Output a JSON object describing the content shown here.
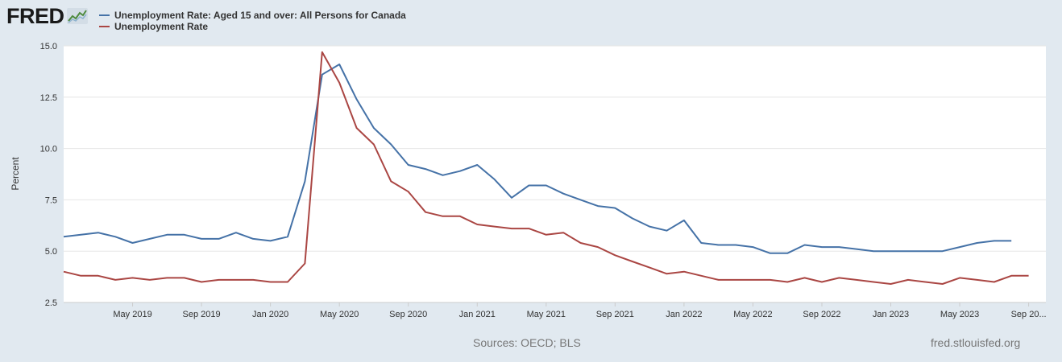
{
  "branding": {
    "logo_text": "FRED"
  },
  "footer": {
    "sources": "Sources: OECD; BLS",
    "site": "fred.stlouisfed.org"
  },
  "chart_data": {
    "type": "line",
    "ylabel": "Percent",
    "xlabel": "",
    "ylim": [
      2.5,
      15.0
    ],
    "y_ticks": [
      "15.0",
      "12.5",
      "10.0",
      "7.5",
      "5.0",
      "2.5"
    ],
    "y_tick_values": [
      15.0,
      12.5,
      10.0,
      7.5,
      5.0,
      2.5
    ],
    "x_ticks": [
      {
        "month_index": 4,
        "label": "May 2019"
      },
      {
        "month_index": 8,
        "label": "Sep 2019"
      },
      {
        "month_index": 12,
        "label": "Jan 2020"
      },
      {
        "month_index": 16,
        "label": "May 2020"
      },
      {
        "month_index": 20,
        "label": "Sep 2020"
      },
      {
        "month_index": 24,
        "label": "Jan 2021"
      },
      {
        "month_index": 28,
        "label": "May 2021"
      },
      {
        "month_index": 32,
        "label": "Sep 2021"
      },
      {
        "month_index": 36,
        "label": "Jan 2022"
      },
      {
        "month_index": 40,
        "label": "May 2022"
      },
      {
        "month_index": 44,
        "label": "Sep 2022"
      },
      {
        "month_index": 48,
        "label": "Jan 2023"
      },
      {
        "month_index": 52,
        "label": "May 2023"
      },
      {
        "month_index": 56,
        "label": "Sep 20..."
      }
    ],
    "x_start": "Jan 2019",
    "x_range_months": [
      0,
      57
    ],
    "grid": true,
    "series": [
      {
        "name": "Unemployment Rate: Aged 15 and over: All Persons for Canada",
        "color": "#4572a7",
        "values": [
          5.7,
          5.8,
          5.9,
          5.7,
          5.4,
          5.6,
          5.8,
          5.8,
          5.6,
          5.6,
          5.9,
          5.6,
          5.5,
          5.7,
          8.4,
          13.6,
          14.1,
          12.4,
          11.0,
          10.2,
          9.2,
          9.0,
          8.7,
          8.9,
          9.2,
          8.5,
          7.6,
          8.2,
          8.2,
          7.8,
          7.5,
          7.2,
          7.1,
          6.6,
          6.2,
          6.0,
          6.5,
          5.4,
          5.3,
          5.3,
          5.2,
          4.9,
          4.9,
          5.3,
          5.2,
          5.2,
          5.1,
          5.0,
          5.0,
          5.0,
          5.0,
          5.0,
          5.2,
          5.4,
          5.5,
          5.5
        ]
      },
      {
        "name": "Unemployment Rate",
        "color": "#aa4643",
        "values": [
          4.0,
          3.8,
          3.8,
          3.6,
          3.7,
          3.6,
          3.7,
          3.7,
          3.5,
          3.6,
          3.6,
          3.6,
          3.5,
          3.5,
          4.4,
          14.7,
          13.2,
          11.0,
          10.2,
          8.4,
          7.9,
          6.9,
          6.7,
          6.7,
          6.3,
          6.2,
          6.1,
          6.1,
          5.8,
          5.9,
          5.4,
          5.2,
          4.8,
          4.5,
          4.2,
          3.9,
          4.0,
          3.8,
          3.6,
          3.6,
          3.6,
          3.6,
          3.5,
          3.7,
          3.5,
          3.7,
          3.6,
          3.5,
          3.4,
          3.6,
          3.5,
          3.4,
          3.7,
          3.6,
          3.5,
          3.8,
          3.8
        ]
      }
    ]
  }
}
